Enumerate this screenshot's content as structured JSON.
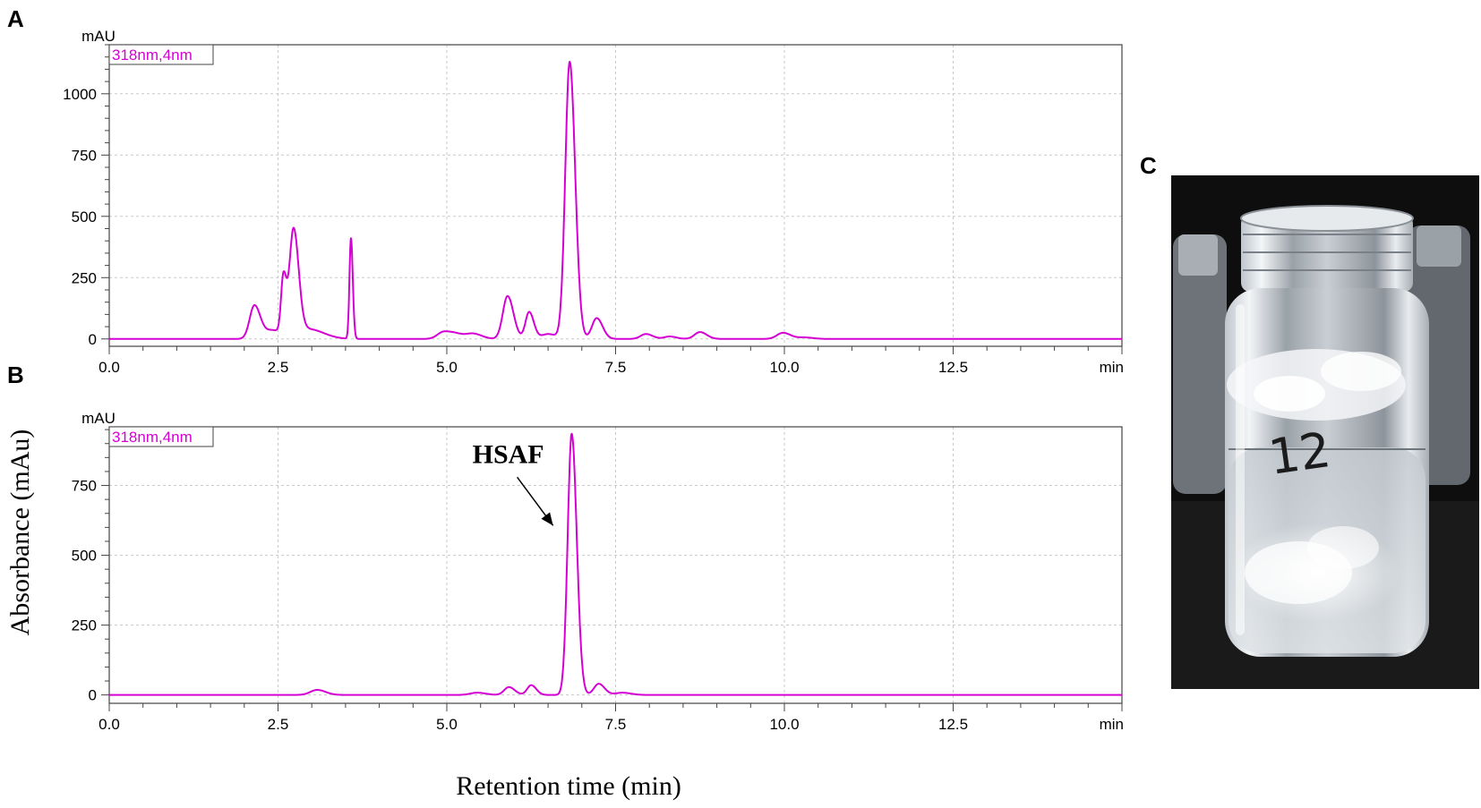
{
  "panels": {
    "a": "A",
    "b": "B",
    "c": "C"
  },
  "y_axis_title": "Absorbance (mAu)",
  "x_axis_title": "Retention time (min)",
  "photo": {
    "vial_label": "12"
  },
  "chart_data": [
    {
      "type": "line",
      "panel": "A",
      "unit_y": "mAU",
      "unit_x": "min",
      "legend": "318nm,4nm",
      "line_color": "#d400d4",
      "xlim": [
        0,
        15
      ],
      "ylim": [
        -30,
        1200
      ],
      "x_ticks": [
        0,
        2.5,
        5,
        7.5,
        10,
        12.5
      ],
      "x_tick_labels": [
        "0.0",
        "2.5",
        "5.0",
        "7.5",
        "10.0",
        "12.5"
      ],
      "y_ticks": [
        0,
        250,
        500,
        750,
        1000
      ],
      "y_tick_labels": [
        "0",
        "250",
        "500",
        "750",
        "1000"
      ],
      "grid": true,
      "baseline": 0,
      "peaks": [
        {
          "rt": 2.15,
          "height": 135,
          "width": 0.07
        },
        {
          "rt": 2.42,
          "height": 35,
          "width": 0.12
        },
        {
          "rt": 2.58,
          "height": 230,
          "width": 0.035
        },
        {
          "rt": 2.73,
          "height": 430,
          "width": 0.06
        },
        {
          "rt": 2.95,
          "height": 40,
          "width": 0.18
        },
        {
          "rt": 3.58,
          "height": 410,
          "width": 0.022
        },
        {
          "rt": 4.95,
          "height": 28,
          "width": 0.09
        },
        {
          "rt": 5.15,
          "height": 18,
          "width": 0.1
        },
        {
          "rt": 5.4,
          "height": 20,
          "width": 0.1
        },
        {
          "rt": 5.9,
          "height": 175,
          "width": 0.07
        },
        {
          "rt": 6.22,
          "height": 110,
          "width": 0.055
        },
        {
          "rt": 6.5,
          "height": 20,
          "width": 0.1
        },
        {
          "rt": 6.82,
          "height": 1130,
          "width": 0.065
        },
        {
          "rt": 7.22,
          "height": 85,
          "width": 0.07
        },
        {
          "rt": 7.95,
          "height": 20,
          "width": 0.08
        },
        {
          "rt": 8.3,
          "height": 10,
          "width": 0.08
        },
        {
          "rt": 8.75,
          "height": 28,
          "width": 0.08
        },
        {
          "rt": 9.98,
          "height": 25,
          "width": 0.09
        },
        {
          "rt": 10.3,
          "height": 6,
          "width": 0.1
        }
      ]
    },
    {
      "type": "line",
      "panel": "B",
      "unit_y": "mAU",
      "unit_x": "min",
      "legend": "318nm,4nm",
      "line_color": "#d400d4",
      "annotation": {
        "label": "HSAF",
        "target_rt": 6.6,
        "target_y": 600
      },
      "xlim": [
        0,
        15
      ],
      "ylim": [
        -30,
        960
      ],
      "x_ticks": [
        0,
        2.5,
        5,
        7.5,
        10,
        12.5
      ],
      "x_tick_labels": [
        "0.0",
        "2.5",
        "5.0",
        "7.5",
        "10.0",
        "12.5"
      ],
      "y_ticks": [
        0,
        250,
        500,
        750
      ],
      "y_tick_labels": [
        "0",
        "250",
        "500",
        "750"
      ],
      "grid": true,
      "baseline": 0,
      "peaks": [
        {
          "rt": 3.08,
          "height": 18,
          "width": 0.1
        },
        {
          "rt": 5.45,
          "height": 8,
          "width": 0.1
        },
        {
          "rt": 5.92,
          "height": 28,
          "width": 0.07
        },
        {
          "rt": 6.25,
          "height": 35,
          "width": 0.06
        },
        {
          "rt": 6.85,
          "height": 935,
          "width": 0.06
        },
        {
          "rt": 7.25,
          "height": 40,
          "width": 0.07
        },
        {
          "rt": 7.6,
          "height": 8,
          "width": 0.1
        }
      ]
    }
  ]
}
